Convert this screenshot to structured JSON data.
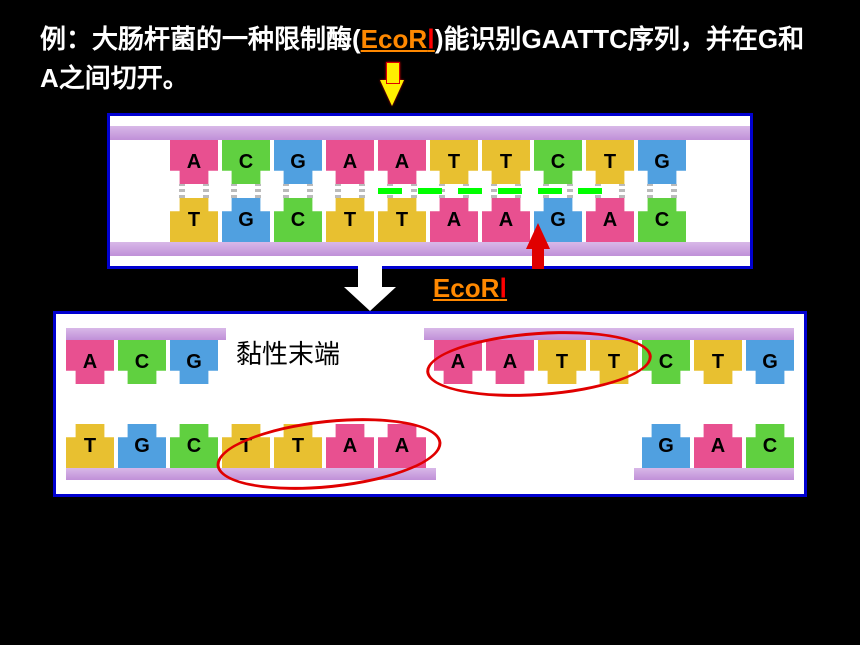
{
  "title_prefix": "例：大肠杆菌的一种限制酶(",
  "enzyme_name": "EcoR",
  "enzyme_roman": "Ⅰ",
  "title_suffix": ")能识别GAATTC序列，并在G和A之间切开。",
  "enzyme_label": "EcoR",
  "enzyme_label_roman": "Ⅰ",
  "sticky_end_label": "黏性末端",
  "dna1": {
    "top_strand": [
      "A",
      "C",
      "G",
      "A",
      "A",
      "T",
      "T",
      "C",
      "T",
      "G"
    ],
    "bottom_strand": [
      "T",
      "G",
      "C",
      "T",
      "T",
      "A",
      "A",
      "G",
      "A",
      "C"
    ]
  },
  "dna2": {
    "left_top": [
      "A",
      "C",
      "G"
    ],
    "left_bottom": [
      "T",
      "G",
      "C",
      "T",
      "T",
      "A",
      "A"
    ],
    "right_top": [
      "A",
      "A",
      "T",
      "T",
      "C",
      "T",
      "G"
    ],
    "right_bottom": [
      "G",
      "A",
      "C"
    ]
  },
  "base_colors": {
    "A": "#e85090",
    "T": "#e8c030",
    "G": "#50a0e0",
    "C": "#60d040"
  },
  "styling": {
    "background": "#000000",
    "box_border": "#0000d0",
    "backbone": "#c090d8",
    "cut_line": "#00ff00",
    "arrow_yellow": "#ffee00",
    "arrow_red": "#e00000",
    "ellipse": "#e00000",
    "title_fontsize": 26,
    "base_fontsize": 20
  }
}
